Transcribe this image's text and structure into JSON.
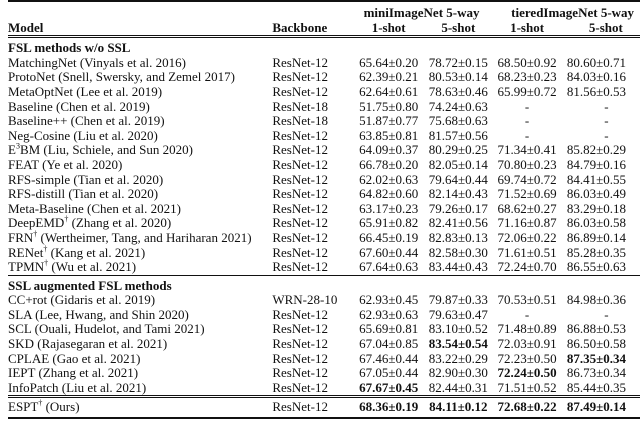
{
  "header": {
    "model": "Model",
    "backbone": "Backbone",
    "mini": "miniImageNet 5-way",
    "tiered": "tieredImageNet 5-way",
    "shot1": "1-shot",
    "shot5": "5-shot"
  },
  "sections": [
    {
      "title": "FSL methods w/o SSL",
      "rows": [
        {
          "model": "MatchingNet (Vinyals et al. 2016)",
          "sup": "",
          "backbone": "ResNet-12",
          "v": [
            "65.64±0.20",
            "78.72±0.15",
            "68.50±0.92",
            "80.60±0.71"
          ],
          "bold": []
        },
        {
          "model": "ProtoNet (Snell, Swersky, and Zemel 2017)",
          "sup": "",
          "backbone": "ResNet-12",
          "v": [
            "62.39±0.21",
            "80.53±0.14",
            "68.23±0.23",
            "84.03±0.16"
          ],
          "bold": []
        },
        {
          "model": "MetaOptNet (Lee et al. 2019)",
          "sup": "",
          "backbone": "ResNet-12",
          "v": [
            "62.64±0.61",
            "78.63±0.46",
            "65.99±0.72",
            "81.56±0.53"
          ],
          "bold": []
        },
        {
          "model": "Baseline (Chen et al. 2019)",
          "sup": "",
          "backbone": "ResNet-18",
          "v": [
            "51.75±0.80",
            "74.24±0.63",
            "-",
            "-"
          ],
          "bold": []
        },
        {
          "model": "Baseline++ (Chen et al. 2019)",
          "sup": "",
          "backbone": "ResNet-18",
          "v": [
            "51.87±0.77",
            "75.68±0.63",
            "-",
            "-"
          ],
          "bold": []
        },
        {
          "model": "Neg-Cosine (Liu et al. 2020)",
          "sup": "",
          "backbone": "ResNet-12",
          "v": [
            "63.85±0.81",
            "81.57±0.56",
            "-",
            "-"
          ],
          "bold": []
        },
        {
          "model": "E",
          "sup": "3",
          "model_rest": "BM (Liu, Schiele, and Sun 2020)",
          "backbone": "ResNet-12",
          "v": [
            "64.09±0.37",
            "80.29±0.25",
            "71.34±0.41",
            "85.82±0.29"
          ],
          "bold": []
        },
        {
          "model": "FEAT (Ye et al. 2020)",
          "sup": "",
          "backbone": "ResNet-12",
          "v": [
            "66.78±0.20",
            "82.05±0.14",
            "70.80±0.23",
            "84.79±0.16"
          ],
          "bold": []
        },
        {
          "model": "RFS-simple (Tian et al. 2020)",
          "sup": "",
          "backbone": "ResNet-12",
          "v": [
            "62.02±0.63",
            "79.64±0.44",
            "69.74±0.72",
            "84.41±0.55"
          ],
          "bold": []
        },
        {
          "model": "RFS-distill (Tian et al. 2020)",
          "sup": "",
          "backbone": "ResNet-12",
          "v": [
            "64.82±0.60",
            "82.14±0.43",
            "71.52±0.69",
            "86.03±0.49"
          ],
          "bold": []
        },
        {
          "model": "Meta-Baseline (Chen et al. 2021)",
          "sup": "",
          "backbone": "ResNet-12",
          "v": [
            "63.17±0.23",
            "79.26±0.17",
            "68.62±0.27",
            "83.29±0.18"
          ],
          "bold": []
        },
        {
          "model": "DeepEMD",
          "sup": "†",
          "model_rest": " (Zhang et al. 2020)",
          "backbone": "ResNet-12",
          "v": [
            "65.91±0.82",
            "82.41±0.56",
            "71.16±0.87",
            "86.03±0.58"
          ],
          "bold": []
        },
        {
          "model": "FRN",
          "sup": "†",
          "model_rest": " (Wertheimer, Tang, and Hariharan 2021)",
          "backbone": "ResNet-12",
          "v": [
            "66.45±0.19",
            "82.83±0.13",
            "72.06±0.22",
            "86.89±0.14"
          ],
          "bold": []
        },
        {
          "model": "RENet",
          "sup": "†",
          "model_rest": " (Kang et al. 2021)",
          "backbone": "ResNet-12",
          "v": [
            "67.60±0.44",
            "82.58±0.30",
            "71.61±0.51",
            "85.28±0.35"
          ],
          "bold": []
        },
        {
          "model": "TPMN",
          "sup": "†",
          "model_rest": " (Wu et al. 2021)",
          "backbone": "ResNet-12",
          "v": [
            "67.64±0.63",
            "83.44±0.43",
            "72.24±0.70",
            "86.55±0.63"
          ],
          "bold": []
        }
      ]
    },
    {
      "title": "SSL augmented FSL methods",
      "rows": [
        {
          "model": "CC+rot (Gidaris et al. 2019)",
          "sup": "",
          "backbone": "WRN-28-10",
          "v": [
            "62.93±0.45",
            "79.87±0.33",
            "70.53±0.51",
            "84.98±0.36"
          ],
          "bold": []
        },
        {
          "model": "SLA (Lee, Hwang, and Shin 2020)",
          "sup": "",
          "backbone": "ResNet-12",
          "v": [
            "62.93±0.63",
            "79.63±0.47",
            "-",
            "-"
          ],
          "bold": []
        },
        {
          "model": "SCL (Ouali, Hudelot, and Tami 2021)",
          "sup": "",
          "backbone": "ResNet-12",
          "v": [
            "65.69±0.81",
            "83.10±0.52",
            "71.48±0.89",
            "86.88±0.53"
          ],
          "bold": []
        },
        {
          "model": "SKD (Rajasegaran et al. 2021)",
          "sup": "",
          "backbone": "ResNet-12",
          "v": [
            "67.04±0.85",
            "83.54±0.54",
            "72.03±0.91",
            "86.50±0.58"
          ],
          "bold": [
            1
          ]
        },
        {
          "model": "CPLAE (Gao et al. 2021)",
          "sup": "",
          "backbone": "ResNet-12",
          "v": [
            "67.46±0.44",
            "83.22±0.29",
            "72.23±0.50",
            "87.35±0.34"
          ],
          "bold": [
            3
          ]
        },
        {
          "model": "IEPT (Zhang et al. 2021)",
          "sup": "",
          "backbone": "ResNet-12",
          "v": [
            "67.05±0.44",
            "82.90±0.30",
            "72.24±0.50",
            "86.73±0.34"
          ],
          "bold": [
            2
          ]
        },
        {
          "model": "InfoPatch (Liu et al. 2021)",
          "sup": "",
          "backbone": "ResNet-12",
          "v": [
            "67.67±0.45",
            "82.44±0.31",
            "71.51±0.52",
            "85.44±0.35"
          ],
          "bold": [
            0
          ]
        }
      ]
    }
  ],
  "ours": {
    "model": "ESPT",
    "sup": "†",
    "model_rest": " (Ours)",
    "backbone": "ResNet-12",
    "v": [
      "68.36±0.19",
      "84.11±0.12",
      "72.68±0.22",
      "87.49±0.14"
    ],
    "bold": [
      0,
      1,
      2,
      3
    ]
  }
}
